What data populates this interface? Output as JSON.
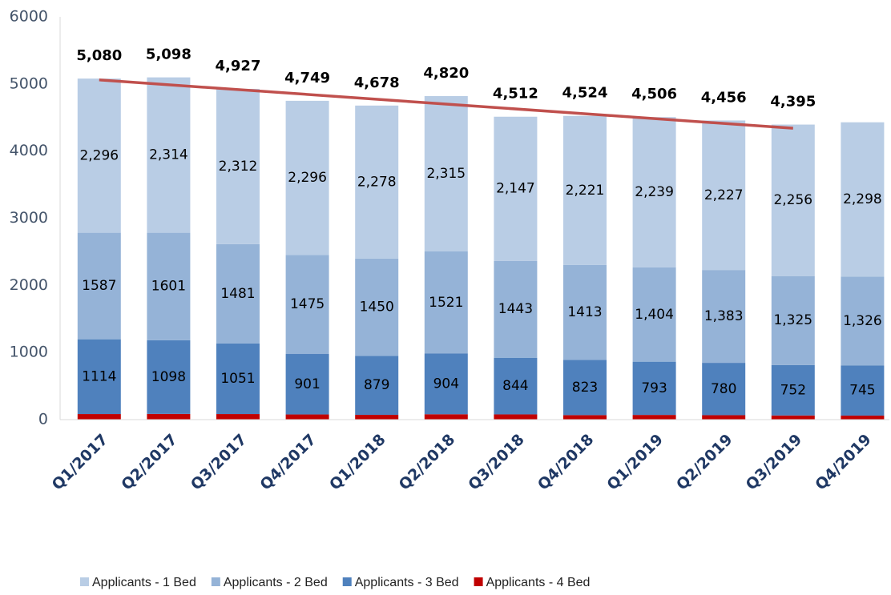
{
  "chart_data": {
    "type": "stacked_bar",
    "categories": [
      "Q1/2017",
      "Q2/2017",
      "Q3/2017",
      "Q4/2017",
      "Q1/2018",
      "Q2/2018",
      "Q3/2018",
      "Q4/2018",
      "Q1/2019",
      "Q2/2019",
      "Q3/2019",
      "Q4/2019"
    ],
    "series": [
      {
        "name": "Applicants - 4 Bed",
        "color": "#c00000",
        "values": [
          83,
          85,
          83,
          77,
          71,
          80,
          78,
          67,
          70,
          66,
          62,
          60
        ]
      },
      {
        "name": "Applicants - 3 Bed",
        "color": "#4f81bd",
        "values": [
          1114,
          1098,
          1051,
          901,
          879,
          904,
          844,
          823,
          793,
          780,
          752,
          745
        ]
      },
      {
        "name": "Applicants - 2 Bed",
        "color": "#95b3d7",
        "values": [
          1587,
          1601,
          1481,
          1475,
          1450,
          1521,
          1443,
          1413,
          1404,
          1383,
          1325,
          1326
        ],
        "value_labels": [
          "1587",
          "1601",
          "1481",
          "1475",
          "1450",
          "1521",
          "1443",
          "1413",
          "1,404",
          "1,383",
          "1,325",
          "1,326"
        ]
      },
      {
        "name": "Applicants - 1 Bed",
        "color": "#b9cde5",
        "values": [
          2296,
          2314,
          2312,
          2296,
          2278,
          2315,
          2147,
          2221,
          2239,
          2227,
          2256,
          2298
        ],
        "value_labels": [
          "2,296",
          "2,314",
          "2,312",
          "2,296",
          "2,278",
          "2,315",
          "2,147",
          "2,221",
          "2,239",
          "2,227",
          "2,256",
          "2,298"
        ]
      }
    ],
    "totals": {
      "values": [
        5080,
        5098,
        4927,
        4749,
        4678,
        4820,
        4512,
        4524,
        4506,
        4456,
        4395,
        null
      ],
      "value_labels": [
        "5,080",
        "5,098",
        "4,927",
        "4,749",
        "4,678",
        "4,820",
        "4,512",
        "4,524",
        "4,506",
        "4,456",
        "4,395",
        null
      ]
    },
    "trendline": {
      "x": [
        "Q1/2017",
        "Q3/2019"
      ],
      "values": [
        5060,
        4340
      ],
      "color": "#c0504d"
    },
    "ylim": [
      0,
      6000
    ],
    "yticks": [
      0,
      1000,
      2000,
      3000,
      4000,
      5000,
      6000
    ],
    "grid": false,
    "legend": "bottom"
  }
}
